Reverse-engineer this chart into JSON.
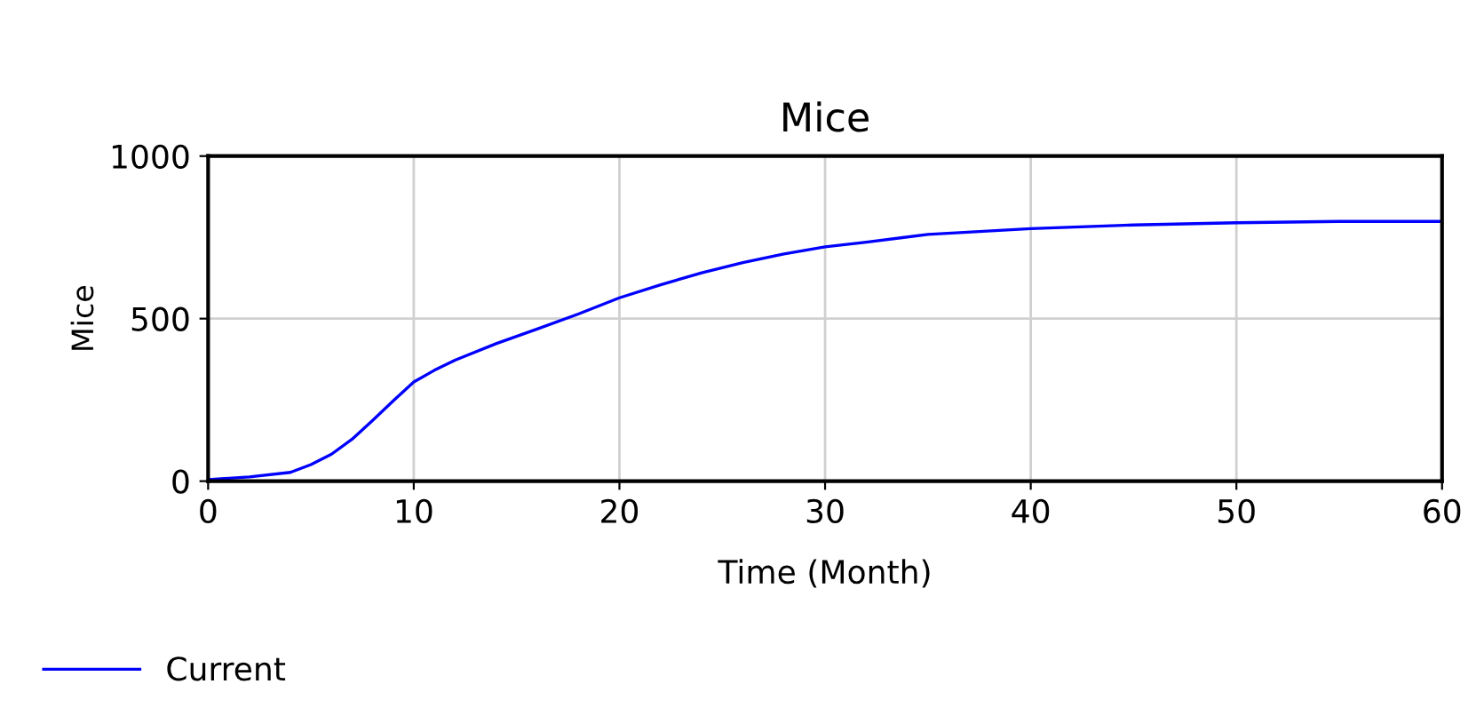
{
  "chart_data": {
    "type": "line",
    "title": "Mice",
    "xlabel": "Time (Month)",
    "ylabel": "Mice",
    "x": [
      0,
      2,
      4,
      5,
      6,
      7,
      8,
      9,
      10,
      11,
      12,
      14,
      16,
      18,
      20,
      22,
      24,
      26,
      28,
      30,
      32,
      35,
      40,
      45,
      50,
      55,
      60
    ],
    "series": [
      {
        "name": "Current",
        "color": "#0000ff",
        "values": [
          5,
          13,
          27,
          51,
          83,
          129,
          187,
          247,
          305,
          341,
          372,
          423,
          468,
          514,
          564,
          604,
          641,
          672,
          699,
          721,
          735,
          759,
          777,
          788,
          795,
          799,
          799
        ]
      }
    ],
    "xlim": [
      0,
      60
    ],
    "xticks": [
      0,
      10,
      20,
      30,
      40,
      50,
      60
    ],
    "ylim": [
      0,
      1000
    ],
    "yticks": [
      0,
      500,
      1000
    ],
    "grid": true,
    "legend": "bottom left",
    "line_style": "solid",
    "marker": "none"
  }
}
